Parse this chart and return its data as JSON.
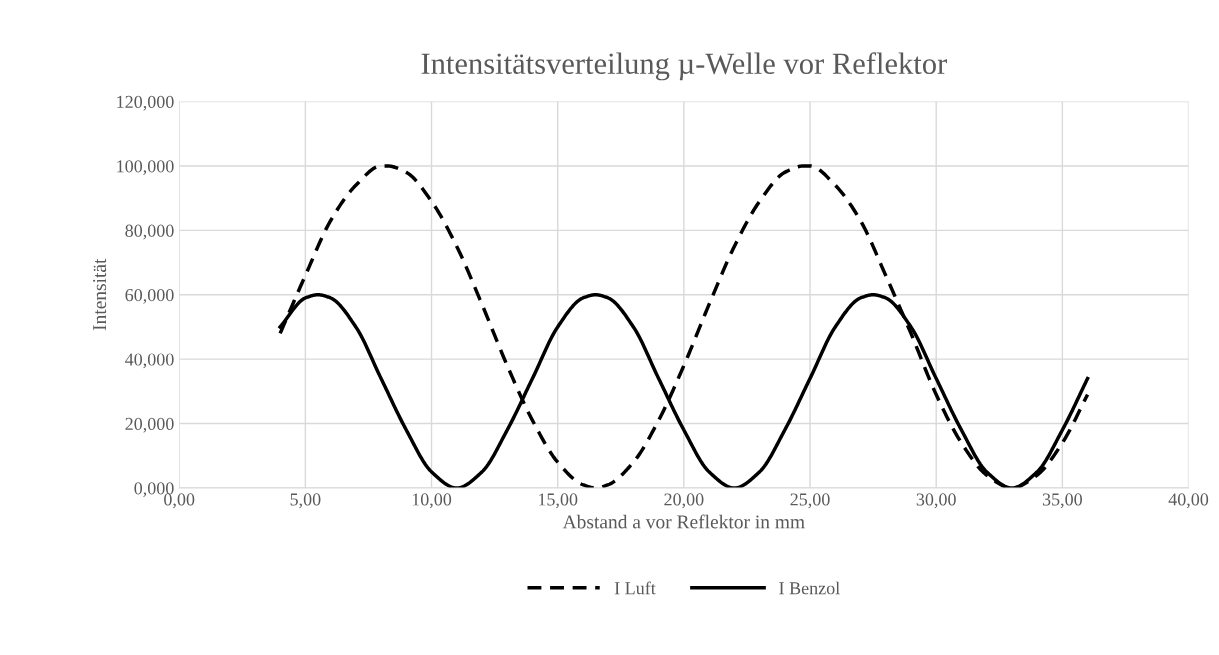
{
  "chart_data": {
    "type": "line",
    "title": "Intensitätsverteilung µ-Welle vor Reflektor",
    "xlabel": "Abstand a vor Reflektor in mm",
    "ylabel": "Intensität",
    "series": [
      {
        "name": "I Luft",
        "color": "#000000",
        "line_style": "dashed",
        "x": [
          4,
          5,
          6,
          7,
          8,
          8.25,
          9,
          10,
          11,
          12,
          13,
          14,
          15,
          16,
          16.5,
          17,
          18,
          19,
          20,
          21,
          22,
          23,
          24,
          24.75,
          25,
          26,
          27,
          28,
          29,
          30,
          31,
          32,
          33,
          34,
          35,
          36
        ],
        "values": [
          48,
          66,
          83,
          94,
          100,
          100,
          98,
          89,
          75,
          57,
          38,
          21,
          8,
          1,
          0,
          1,
          8,
          21,
          38,
          57,
          75,
          89,
          98,
          100,
          100,
          94,
          83,
          66,
          48,
          29,
          14,
          4,
          0,
          4,
          14,
          29
        ]
      },
      {
        "name": "I Benzol",
        "color": "#000000",
        "line_style": "solid",
        "x": [
          4,
          5,
          5.5,
          6,
          7,
          8,
          9,
          10,
          11,
          12,
          13,
          14,
          15,
          16,
          16.5,
          17,
          18,
          19,
          20,
          21,
          22,
          23,
          24,
          25,
          26,
          27,
          27.5,
          28,
          29,
          30,
          31,
          32,
          33,
          34,
          35,
          36
        ],
        "values": [
          50,
          59,
          60,
          59,
          50,
          34,
          18,
          5,
          0,
          5,
          18,
          34,
          50,
          59,
          60,
          59,
          50,
          34,
          18,
          5,
          0,
          5,
          18,
          34,
          50,
          59,
          60,
          59,
          50,
          34,
          18,
          5,
          0,
          5,
          18,
          34
        ]
      }
    ],
    "xlim": [
      0,
      40
    ],
    "xticks": [
      {
        "value": 0,
        "label": "0,00"
      },
      {
        "value": 5,
        "label": "5,00"
      },
      {
        "value": 10,
        "label": "10,00"
      },
      {
        "value": 15,
        "label": "15,00"
      },
      {
        "value": 20,
        "label": "20,00"
      },
      {
        "value": 25,
        "label": "25,00"
      },
      {
        "value": 30,
        "label": "30,00"
      },
      {
        "value": 35,
        "label": "35,00"
      },
      {
        "value": 40,
        "label": "40,00"
      }
    ],
    "ylim": [
      0,
      120
    ],
    "yticks": [
      {
        "value": 0,
        "label": "0,000"
      },
      {
        "value": 20,
        "label": "20,000"
      },
      {
        "value": 40,
        "label": "40,000"
      },
      {
        "value": 60,
        "label": "60,000"
      },
      {
        "value": 80,
        "label": "80,000"
      },
      {
        "value": 100,
        "label": "100,000"
      },
      {
        "value": 120,
        "label": "120,000"
      }
    ],
    "grid": true,
    "legend": "bottom",
    "marker": "none"
  }
}
